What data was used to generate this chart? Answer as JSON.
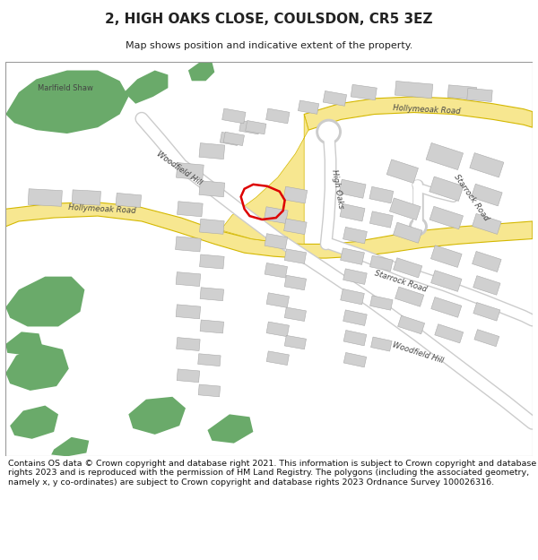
{
  "title": "2, HIGH OAKS CLOSE, COULSDON, CR5 3EZ",
  "subtitle": "Map shows position and indicative extent of the property.",
  "footer": "Contains OS data © Crown copyright and database right 2021. This information is subject to Crown copyright and database rights 2023 and is reproduced with the permission of HM Land Registry. The polygons (including the associated geometry, namely x, y co-ordinates) are subject to Crown copyright and database rights 2023 Ordnance Survey 100026316.",
  "bg_color": "#ffffff",
  "map_bg": "#f5f5f5",
  "road_yellow_fill": "#f7e790",
  "road_yellow_edge": "#d4b800",
  "road_white_fill": "#ffffff",
  "road_white_edge": "#cccccc",
  "building_color": "#d0d0d0",
  "building_edge": "#aaaaaa",
  "green_color": "#6aaa6a",
  "plot_color": "#dd0000",
  "text_color": "#222222",
  "road_label_color": "#444444",
  "title_fontsize": 11,
  "subtitle_fontsize": 8,
  "footer_fontsize": 6.8
}
